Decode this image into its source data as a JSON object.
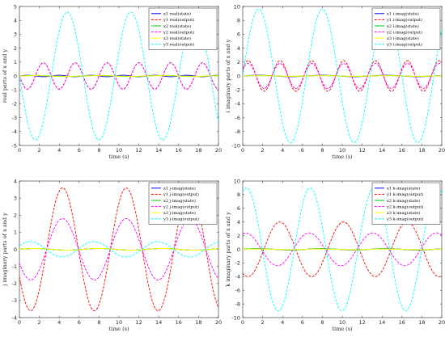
{
  "chart_data": [
    {
      "type": "line",
      "xlabel": "time (s)",
      "ylabel": "real parts of x and y",
      "xlim": [
        0,
        20
      ],
      "ylim": [
        -5,
        5
      ],
      "xticks": [
        "0",
        "2",
        "4",
        "6",
        "8",
        "10",
        "12",
        "14",
        "16",
        "18",
        "20"
      ],
      "yticks": [
        "-5",
        "-4",
        "-3",
        "-2",
        "-1",
        "0",
        "1",
        "2",
        "3",
        "4",
        "5"
      ],
      "grid": false,
      "legend_position": "top-right",
      "series": [
        {
          "name": "x1 real(state)",
          "color": "#0000ff",
          "dash": "solid",
          "amp": 0.05,
          "period": 3.2,
          "phase": 0.0,
          "offset": 0.0
        },
        {
          "name": "y1 real(output)",
          "color": "#ff0000",
          "dash": "dashed",
          "amp": 0.95,
          "period": 3.2,
          "phase": 3.14,
          "offset": 0.0
        },
        {
          "name": "x2 real(state)",
          "color": "#00cc00",
          "dash": "solid",
          "amp": 0.04,
          "period": 6.4,
          "phase": 0.0,
          "offset": 0.0
        },
        {
          "name": "y2 real(output)",
          "color": "#ff00ff",
          "dash": "dashed",
          "amp": 0.95,
          "period": 3.2,
          "phase": 3.14,
          "offset": 0.0
        },
        {
          "name": "x3 real(state)",
          "color": "#ffff00",
          "dash": "solid",
          "amp": 0.02,
          "period": 6.4,
          "phase": 0.0,
          "offset": 0.0
        },
        {
          "name": "y3 real(output)",
          "color": "#00ffff",
          "dash": "dashed",
          "amp": 4.6,
          "period": 6.4,
          "phase": 3.14,
          "offset": 0.0
        }
      ]
    },
    {
      "type": "line",
      "xlabel": "time (s)",
      "ylabel": "i imaginary parts of x and y",
      "xlim": [
        0,
        20
      ],
      "ylim": [
        -10,
        10
      ],
      "xticks": [
        "0",
        "2",
        "4",
        "6",
        "8",
        "10",
        "12",
        "14",
        "16",
        "18",
        "20"
      ],
      "yticks": [
        "-10",
        "-8",
        "-6",
        "-4",
        "-2",
        "0",
        "2",
        "4",
        "6",
        "8",
        "10"
      ],
      "grid": false,
      "legend_position": "top-right",
      "series": [
        {
          "name": "x1 i-imag(state)",
          "color": "#0000ff",
          "dash": "solid",
          "amp": 0.1,
          "period": 6.4,
          "phase": 0.0,
          "offset": 0.0
        },
        {
          "name": "y1 i-imag(output)",
          "color": "#ff0000",
          "dash": "dashed",
          "amp": 2.2,
          "period": 3.2,
          "phase": 0.5,
          "offset": 0.0
        },
        {
          "name": "x2 i-imag(state)",
          "color": "#00cc00",
          "dash": "solid",
          "amp": 0.05,
          "period": 6.4,
          "phase": 0.0,
          "offset": 0.0
        },
        {
          "name": "y2 i-imag(output)",
          "color": "#ff00ff",
          "dash": "dashed",
          "amp": 1.8,
          "period": 3.2,
          "phase": 0.5,
          "offset": 0.0
        },
        {
          "name": "x3 i-imag(state)",
          "color": "#ffff00",
          "dash": "solid",
          "amp": 0.05,
          "period": 6.4,
          "phase": 0.0,
          "offset": 0.0
        },
        {
          "name": "y3 i-imag(output)",
          "color": "#00ffff",
          "dash": "dashed",
          "amp": 9.6,
          "period": 6.4,
          "phase": 0.0,
          "offset": 0.0
        }
      ]
    },
    {
      "type": "line",
      "xlabel": "time (s)",
      "ylabel": "j imaginary parts of x and y",
      "xlim": [
        0,
        20
      ],
      "ylim": [
        -4,
        4
      ],
      "xticks": [
        "0",
        "2",
        "4",
        "6",
        "8",
        "10",
        "12",
        "14",
        "16",
        "18",
        "20"
      ],
      "yticks": [
        "-4",
        "-3",
        "-2",
        "-1",
        "0",
        "1",
        "2",
        "3",
        "4"
      ],
      "grid": false,
      "legend_position": "top-right",
      "series": [
        {
          "name": "x1 j-imag(state)",
          "color": "#0000ff",
          "dash": "solid",
          "amp": 0.05,
          "period": 6.4,
          "phase": 0.0,
          "offset": 0.0
        },
        {
          "name": "y1 j-imag(output)",
          "color": "#ff0000",
          "dash": "dashed",
          "amp": 3.6,
          "period": 6.4,
          "phase": 3.6,
          "offset": 0.0
        },
        {
          "name": "x2 j-imag(state)",
          "color": "#00cc00",
          "dash": "solid",
          "amp": 0.05,
          "period": 6.4,
          "phase": 0.0,
          "offset": 0.0
        },
        {
          "name": "y2 j-imag(output)",
          "color": "#ff00ff",
          "dash": "dashed",
          "amp": 1.8,
          "period": 6.4,
          "phase": 3.6,
          "offset": 0.0
        },
        {
          "name": "x3 j-imag(state)",
          "color": "#ffff00",
          "dash": "solid",
          "amp": 0.05,
          "period": 6.4,
          "phase": 0.0,
          "offset": 0.0
        },
        {
          "name": "y3 j-imag(output)",
          "color": "#00ffff",
          "dash": "dashed",
          "amp": 0.45,
          "period": 6.4,
          "phase": 0.5,
          "offset": 0.0
        }
      ]
    },
    {
      "type": "line",
      "xlabel": "time (s)",
      "ylabel": "k imaginary parts of x and y",
      "xlim": [
        0,
        20
      ],
      "ylim": [
        -10,
        10
      ],
      "xticks": [
        "0",
        "2",
        "4",
        "6",
        "8",
        "10",
        "12",
        "14",
        "16",
        "18",
        "20"
      ],
      "yticks": [
        "-10",
        "-8",
        "-6",
        "-4",
        "-2",
        "0",
        "2",
        "4",
        "6",
        "8",
        "10"
      ],
      "grid": false,
      "legend_position": "top-right",
      "series": [
        {
          "name": "x1 k-imag(state)",
          "color": "#0000ff",
          "dash": "solid",
          "amp": 0.1,
          "period": 6.4,
          "phase": 0.0,
          "offset": 0.0
        },
        {
          "name": "y1 k-imag(output)",
          "color": "#ff0000",
          "dash": "dashed",
          "amp": 4.0,
          "period": 6.4,
          "phase": 4.2,
          "offset": 0.0
        },
        {
          "name": "x2 k-imag(state)",
          "color": "#00cc00",
          "dash": "solid",
          "amp": 0.1,
          "period": 6.4,
          "phase": 0.0,
          "offset": 0.0
        },
        {
          "name": "y2 k-imag(output)",
          "color": "#ff00ff",
          "dash": "dashed",
          "amp": 2.4,
          "period": 6.4,
          "phase": 1.3,
          "offset": 0.0
        },
        {
          "name": "x3 k-imag(state)",
          "color": "#ffff00",
          "dash": "solid",
          "amp": 0.05,
          "period": 6.4,
          "phase": 0.0,
          "offset": 0.0
        },
        {
          "name": "y3 k-imag(output)",
          "color": "#00ffff",
          "dash": "dashed",
          "amp": 9.0,
          "period": 6.4,
          "phase": 1.2,
          "offset": 0.0
        }
      ]
    }
  ]
}
